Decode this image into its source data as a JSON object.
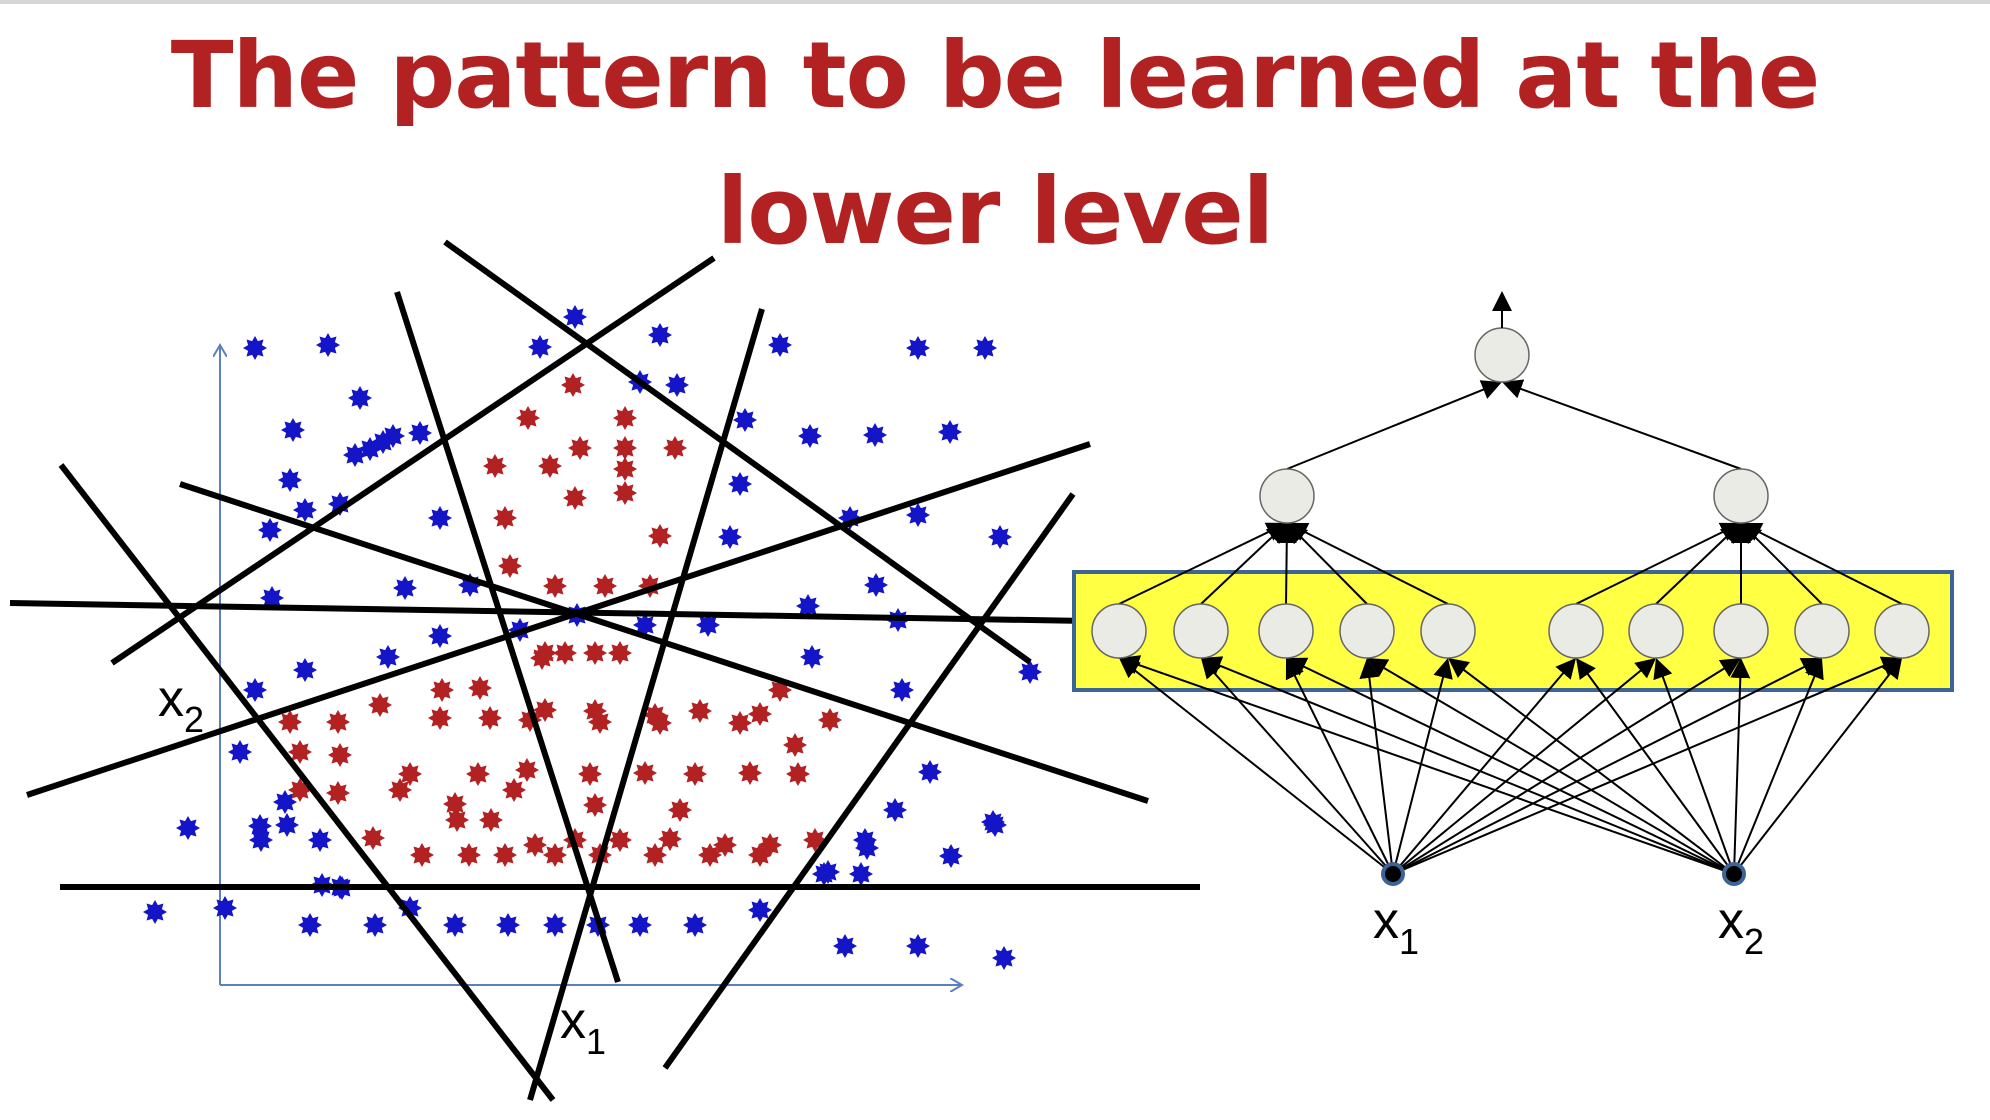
{
  "title": {
    "line1": "The pattern to be learned at the",
    "line2": "lower level"
  },
  "scatter_plot": {
    "x_axis_label": "x",
    "x_axis_subscript": "1",
    "y_axis_label": "x",
    "y_axis_subscript": "2",
    "inner_class_color": "#b22222",
    "outer_class_color": "#1515c8",
    "boundary_line_count": 10,
    "marker_icon": "star-marker-icon"
  },
  "network": {
    "input_label_1": "x",
    "input_label_1_sub": "1",
    "input_label_2": "x",
    "input_label_2_sub": "2",
    "first_hidden_group_a_count": 5,
    "first_hidden_group_b_count": 5,
    "second_hidden_count": 2,
    "output_count": 1,
    "highlight_color": "#ffff44",
    "highlight_border": "#3c6496",
    "node_fill": "#ebebe6"
  }
}
